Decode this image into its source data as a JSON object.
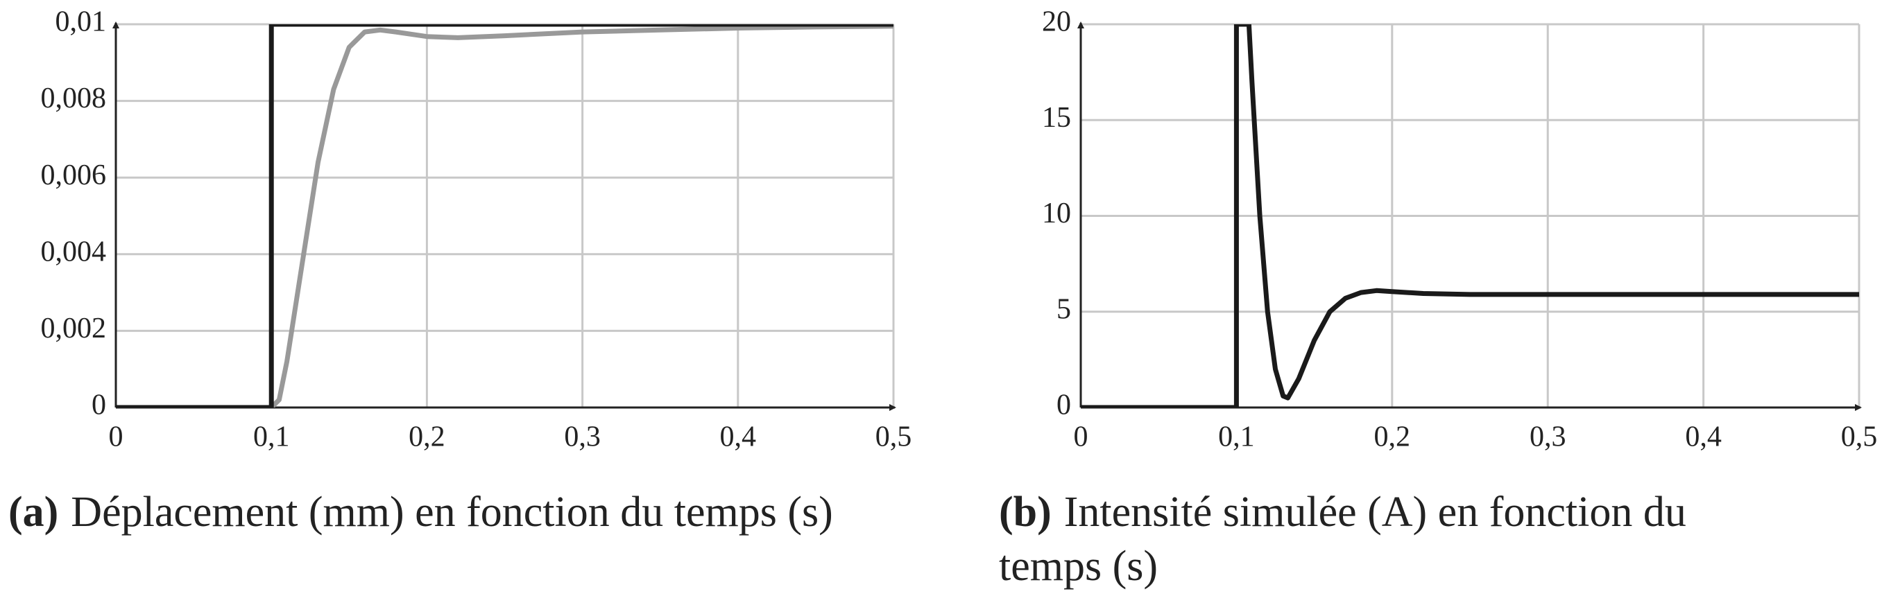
{
  "chart_data": [
    {
      "type": "line",
      "caption_label": "(a)",
      "caption": "Déplacement (mm) en fonction du temps (s)",
      "xlim": [
        0,
        0.5
      ],
      "ylim": [
        0,
        0.01
      ],
      "grid": true,
      "xticks": [
        0,
        {
          "value": 0.1,
          "label": "0,1"
        },
        {
          "value": 0.2,
          "label": "0,2"
        },
        {
          "value": 0.3,
          "label": "0,3"
        },
        {
          "value": 0.4,
          "label": "0,4"
        },
        {
          "value": 0.5,
          "label": "0,5"
        }
      ],
      "yticks": [
        0,
        {
          "value": 0.002,
          "label": "0,002"
        },
        {
          "value": 0.004,
          "label": "0,004"
        },
        {
          "value": 0.006,
          "label": "0,006"
        },
        {
          "value": 0.008,
          "label": "0,008"
        },
        {
          "value": 0.01,
          "label": "0,01"
        }
      ],
      "series": [
        {
          "color": "#999999",
          "x": [
            0,
            0.1,
            0.105,
            0.11,
            0.12,
            0.13,
            0.14,
            0.15,
            0.16,
            0.17,
            0.18,
            0.2,
            0.22,
            0.25,
            0.3,
            0.35,
            0.4,
            0.45,
            0.5
          ],
          "values": [
            0,
            0,
            0.0002,
            0.0012,
            0.0038,
            0.0064,
            0.0083,
            0.0094,
            0.0098,
            0.00985,
            0.0098,
            0.00968,
            0.00965,
            0.0097,
            0.0098,
            0.00985,
            0.0099,
            0.00993,
            0.00995
          ]
        },
        {
          "color": "#1a1a1a",
          "x": [
            0,
            0.1,
            0.1,
            0.5
          ],
          "values": [
            0,
            0,
            0.01,
            0.01
          ]
        }
      ]
    },
    {
      "type": "line",
      "caption_label": "(b)",
      "caption": "Intensité simulée (A) en fonction du temps (s)",
      "xlim": [
        0,
        0.5
      ],
      "ylim": [
        0,
        20
      ],
      "grid": true,
      "xticks": [
        0,
        {
          "value": 0.1,
          "label": "0,1"
        },
        {
          "value": 0.2,
          "label": "0,2"
        },
        {
          "value": 0.3,
          "label": "0,3"
        },
        {
          "value": 0.4,
          "label": "0,4"
        },
        {
          "value": 0.5,
          "label": "0,5"
        }
      ],
      "yticks": [
        0,
        5,
        10,
        15,
        20
      ],
      "series": [
        {
          "color": "#1a1a1a",
          "x": [
            0,
            0.1,
            0.1,
            0.108,
            0.11,
            0.115,
            0.12,
            0.125,
            0.13,
            0.133,
            0.14,
            0.15,
            0.16,
            0.17,
            0.18,
            0.19,
            0.2,
            0.22,
            0.25,
            0.3,
            0.4,
            0.5
          ],
          "values": [
            0,
            0,
            20,
            20,
            17,
            10,
            5,
            2,
            0.6,
            0.5,
            1.5,
            3.5,
            5,
            5.7,
            6,
            6.1,
            6.05,
            5.95,
            5.9,
            5.9,
            5.9,
            5.9
          ]
        }
      ]
    }
  ]
}
